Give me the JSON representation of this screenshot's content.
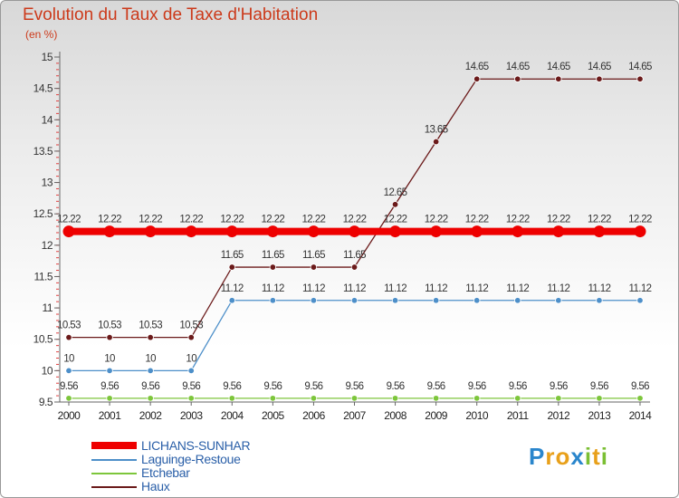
{
  "title": "Evolution du Taux de Taxe d'Habitation",
  "subtitle": "(en %)",
  "brand": {
    "logo_text": "Proxiti",
    "letters": [
      {
        "ch": "P",
        "color": "#2a86cc"
      },
      {
        "ch": "r",
        "color": "#e8a01a"
      },
      {
        "ch": "o",
        "color": "#e8a01a"
      },
      {
        "ch": "x",
        "color": "#2a86cc"
      },
      {
        "ch": "i",
        "color": "#7bbf34"
      },
      {
        "ch": "t",
        "color": "#e8a01a"
      },
      {
        "ch": "i",
        "color": "#7bbf34"
      }
    ]
  },
  "chart_data": {
    "type": "line",
    "title": "Evolution du Taux de Taxe d'Habitation",
    "ylabel": "(en %)",
    "xlabel": "",
    "x": [
      "2000",
      "2001",
      "2002",
      "2003",
      "2004",
      "2005",
      "2006",
      "2007",
      "2008",
      "2009",
      "2010",
      "2011",
      "2012",
      "2013",
      "2014"
    ],
    "ylim": [
      9.5,
      15
    ],
    "yticks": [
      9.5,
      10,
      10.5,
      11,
      11.5,
      12,
      12.5,
      13,
      13.5,
      14,
      14.5,
      15
    ],
    "grid": false,
    "legend": "bottom-left",
    "series": [
      {
        "name": "LICHANS-SUNHAR",
        "color": "#ee0000",
        "values": [
          12.22,
          12.22,
          12.22,
          12.22,
          12.22,
          12.22,
          12.22,
          12.22,
          12.22,
          12.22,
          12.22,
          12.22,
          12.22,
          12.22,
          12.22
        ]
      },
      {
        "name": "Laguinge-Restoue",
        "color": "#4d8fc9",
        "values": [
          10,
          10,
          10,
          10,
          11.12,
          11.12,
          11.12,
          11.12,
          11.12,
          11.12,
          11.12,
          11.12,
          11.12,
          11.12,
          11.12
        ]
      },
      {
        "name": "Etchebar",
        "color": "#7dc63b",
        "values": [
          9.56,
          9.56,
          9.56,
          9.56,
          9.56,
          9.56,
          9.56,
          9.56,
          9.56,
          9.56,
          9.56,
          9.56,
          9.56,
          9.56,
          9.56
        ]
      },
      {
        "name": "Haux",
        "color": "#6b1a1a",
        "values": [
          10.53,
          10.53,
          10.53,
          10.53,
          11.65,
          11.65,
          11.65,
          11.65,
          12.65,
          13.65,
          14.65,
          14.65,
          14.65,
          14.65,
          14.65
        ]
      }
    ]
  }
}
